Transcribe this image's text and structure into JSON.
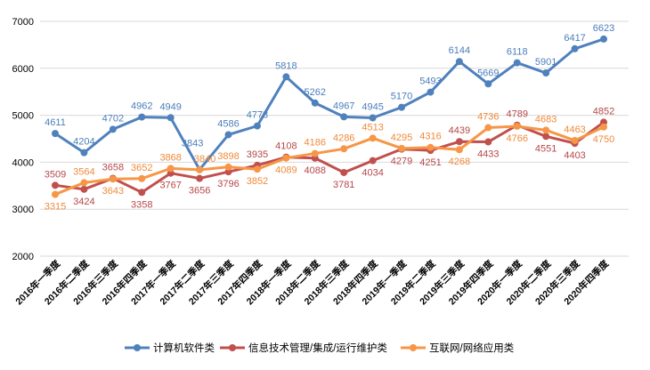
{
  "chart_data": {
    "type": "line",
    "title": "",
    "xlabel": "",
    "ylabel": "",
    "ylim": [
      2000,
      7000
    ],
    "yticks": [
      2000,
      3000,
      4000,
      5000,
      6000,
      7000
    ],
    "grid": true,
    "legend_position": "bottom",
    "categories": [
      "2016年一季度",
      "2016年二季度",
      "2016年三季度",
      "2016年四季度",
      "2017年一季度",
      "2017年二季度",
      "2017年三季度",
      "2017年四季度",
      "2018年一季度",
      "2018年二季度",
      "2018年三季度",
      "2018年四季度",
      "2019年一季度",
      "2019年二季度",
      "2019年三季度",
      "2019年四季度",
      "2020年一季度",
      "2020年二季度",
      "2020年三季度",
      "2020年四季度"
    ],
    "series": [
      {
        "name": "计算机软件类",
        "color": "#4F81BD",
        "label_color": "#4A7EBB",
        "values": [
          4611,
          4204,
          4702,
          4962,
          4949,
          3843,
          4586,
          4773,
          5818,
          5262,
          4967,
          4945,
          5170,
          5493,
          6144,
          5669,
          6118,
          5901,
          6417,
          6623
        ]
      },
      {
        "name": "信息技术管理/集成/运行维护类",
        "color": "#C0504D",
        "label_color": "#B7474A",
        "values": [
          3509,
          3424,
          3658,
          3358,
          3767,
          3656,
          3796,
          3935,
          4108,
          4088,
          3781,
          4034,
          4279,
          4251,
          4439,
          4433,
          4789,
          4551,
          4403,
          4852
        ]
      },
      {
        "name": "互联网/网络应用类",
        "color": "#F79646",
        "label_color": "#F08A3A",
        "values": [
          3315,
          3564,
          3643,
          3652,
          3868,
          3840,
          3898,
          3852,
          4089,
          4186,
          4286,
          4513,
          4295,
          4316,
          4268,
          4736,
          4766,
          4683,
          4463,
          4750
        ]
      }
    ]
  }
}
